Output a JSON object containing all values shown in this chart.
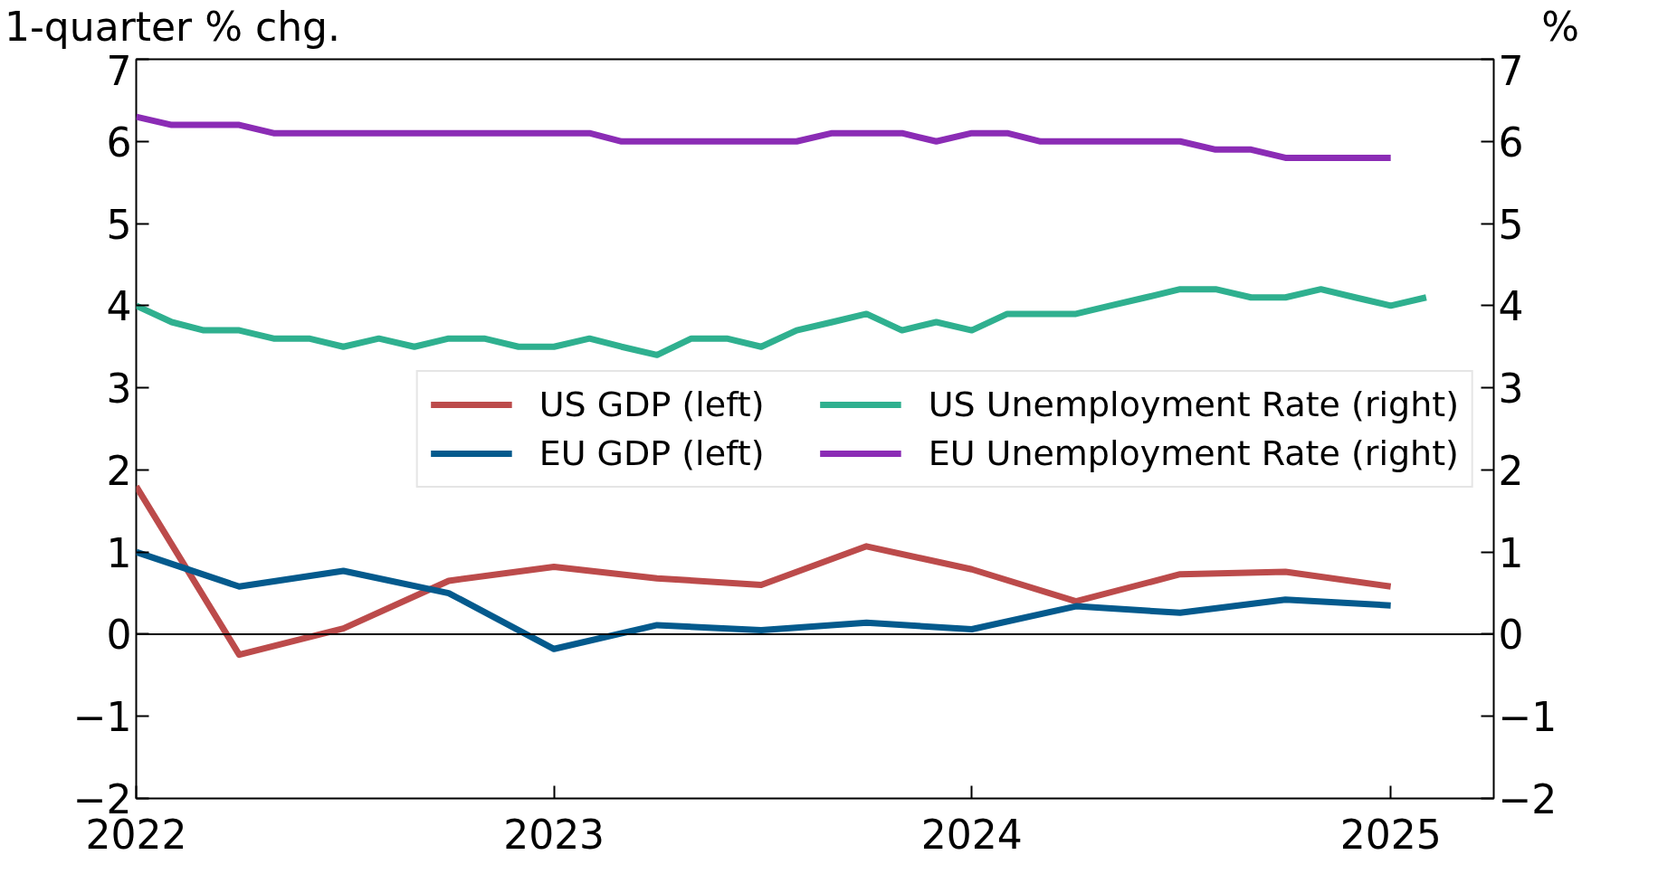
{
  "chart_data": {
    "type": "line",
    "ylabel": "1-quarter % chg.",
    "y2label": "%",
    "xlim": [
      "2022-01-01",
      "2025-04-01"
    ],
    "xticks": [
      {
        "value": "2022-01-01",
        "label": "2022"
      },
      {
        "value": "2023-01-01",
        "label": "2023"
      },
      {
        "value": "2024-01-01",
        "label": "2024"
      },
      {
        "value": "2025-01-01",
        "label": "2025"
      }
    ],
    "ylim": [
      -2,
      7
    ],
    "yticks": [
      {
        "value": -2,
        "label": "−2"
      },
      {
        "value": -1,
        "label": "−1"
      },
      0,
      1,
      2,
      3,
      4,
      5,
      6,
      7
    ],
    "y2lim": [
      -2,
      7
    ],
    "y2ticks": [
      {
        "value": -2,
        "label": "−2"
      },
      {
        "value": -1,
        "label": "−1"
      },
      0,
      1,
      2,
      3,
      4,
      5,
      6,
      7
    ],
    "ref_lines": [
      {
        "axis": "y",
        "value": 0,
        "color": "#000000"
      }
    ],
    "legend": "right",
    "grid": false,
    "series": [
      {
        "name": "US GDP (left)",
        "color": "#bc4b4b",
        "x": [
          "2022-01",
          "2022-04",
          "2022-07",
          "2022-10",
          "2023-01",
          "2023-04",
          "2023-07",
          "2023-10",
          "2024-01",
          "2024-04",
          "2024-07",
          "2024-10",
          "2025-01"
        ],
        "values": [
          1.8,
          -0.25,
          0.07,
          0.65,
          0.82,
          0.68,
          0.6,
          1.07,
          0.79,
          0.4,
          0.73,
          0.76,
          0.58
        ]
      },
      {
        "name": "EU GDP (left)",
        "color": "#045a8d",
        "x": [
          "2022-01",
          "2022-04",
          "2022-07",
          "2022-10",
          "2023-01",
          "2023-04",
          "2023-07",
          "2023-10",
          "2024-01",
          "2024-04",
          "2024-07",
          "2024-10",
          "2025-01"
        ],
        "values": [
          1.0,
          0.58,
          0.77,
          0.5,
          -0.18,
          0.11,
          0.05,
          0.14,
          0.06,
          0.34,
          0.26,
          0.42,
          0.35
        ]
      },
      {
        "name": "US Unemployment Rate (right)",
        "color": "#2fb08f",
        "axis": "y2",
        "x": [
          "2022-01",
          "2022-02",
          "2022-03",
          "2022-04",
          "2022-05",
          "2022-06",
          "2022-07",
          "2022-08",
          "2022-09",
          "2022-10",
          "2022-11",
          "2022-12",
          "2023-01",
          "2023-02",
          "2023-03",
          "2023-04",
          "2023-05",
          "2023-06",
          "2023-07",
          "2023-08",
          "2023-09",
          "2023-10",
          "2023-11",
          "2023-12",
          "2024-01",
          "2024-02",
          "2024-03",
          "2024-04",
          "2024-05",
          "2024-06",
          "2024-07",
          "2024-08",
          "2024-09",
          "2024-10",
          "2024-11",
          "2024-12",
          "2025-01",
          "2025-02"
        ],
        "values": [
          4.0,
          3.8,
          3.7,
          3.7,
          3.6,
          3.6,
          3.5,
          3.6,
          3.5,
          3.6,
          3.6,
          3.5,
          3.5,
          3.6,
          3.5,
          3.4,
          3.6,
          3.6,
          3.5,
          3.7,
          3.8,
          3.9,
          3.7,
          3.8,
          3.7,
          3.9,
          3.9,
          3.9,
          4.0,
          4.1,
          4.2,
          4.2,
          4.1,
          4.1,
          4.2,
          4.1,
          4.0,
          4.1
        ]
      },
      {
        "name": "EU Unemployment Rate (right)",
        "color": "#8b2cb5",
        "axis": "y2",
        "x": [
          "2022-01",
          "2022-02",
          "2022-03",
          "2022-04",
          "2022-05",
          "2022-06",
          "2022-07",
          "2022-08",
          "2022-09",
          "2022-10",
          "2022-11",
          "2022-12",
          "2023-01",
          "2023-02",
          "2023-03",
          "2023-04",
          "2023-05",
          "2023-06",
          "2023-07",
          "2023-08",
          "2023-09",
          "2023-10",
          "2023-11",
          "2023-12",
          "2024-01",
          "2024-02",
          "2024-03",
          "2024-04",
          "2024-05",
          "2024-06",
          "2024-07",
          "2024-08",
          "2024-09",
          "2024-10",
          "2024-11",
          "2024-12",
          "2025-01"
        ],
        "values": [
          6.3,
          6.2,
          6.2,
          6.2,
          6.1,
          6.1,
          6.1,
          6.1,
          6.1,
          6.1,
          6.1,
          6.1,
          6.1,
          6.1,
          6.0,
          6.0,
          6.0,
          6.0,
          6.0,
          6.0,
          6.1,
          6.1,
          6.1,
          6.0,
          6.1,
          6.1,
          6.0,
          6.0,
          6.0,
          6.0,
          6.0,
          5.9,
          5.9,
          5.8,
          5.8,
          5.8,
          5.8
        ]
      }
    ]
  }
}
